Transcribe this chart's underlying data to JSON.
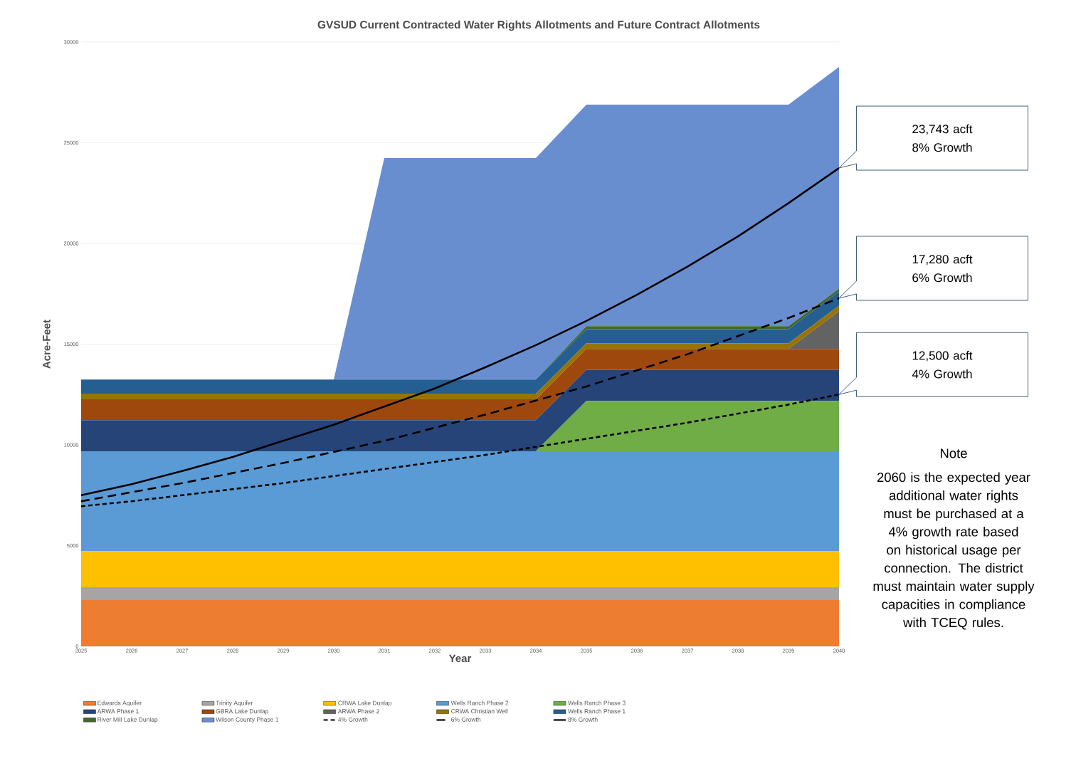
{
  "chart_data": {
    "type": "area",
    "title": "GVSUD Current Contracted Water Rights Allotments and Future Contract Allotments",
    "xlabel": "Year",
    "ylabel": "Acre-Feet",
    "stacked": true,
    "grid": "y",
    "legend": "bottom",
    "x": [
      2025,
      2026,
      2027,
      2028,
      2029,
      2030,
      2031,
      2032,
      2033,
      2034,
      2035,
      2036,
      2037,
      2038,
      2039,
      2040
    ],
    "xlim": [
      2025,
      2040
    ],
    "xticks": [
      2025,
      2026,
      2027,
      2028,
      2029,
      2030,
      2031,
      2032,
      2033,
      2034,
      2035,
      2036,
      2037,
      2038,
      2039,
      2040
    ],
    "ylim": [
      0,
      30000
    ],
    "yticks": [
      0,
      5000,
      10000,
      15000,
      20000,
      25000,
      30000
    ],
    "series": [
      {
        "name": "Edwards Aquifer",
        "color": "#ed7d31",
        "values": [
          2300,
          2300,
          2300,
          2300,
          2300,
          2300,
          2300,
          2300,
          2300,
          2300,
          2300,
          2300,
          2300,
          2300,
          2300,
          2300
        ]
      },
      {
        "name": "Trinity Aquifer",
        "color": "#a5a5a5",
        "values": [
          630,
          630,
          630,
          630,
          630,
          630,
          630,
          630,
          630,
          630,
          630,
          630,
          630,
          630,
          630,
          630
        ]
      },
      {
        "name": "CRWA Lake Dunlap",
        "color": "#ffc000",
        "values": [
          1800,
          1800,
          1800,
          1800,
          1800,
          1800,
          1800,
          1800,
          1800,
          1800,
          1800,
          1800,
          1800,
          1800,
          1800,
          1800
        ]
      },
      {
        "name": "Wells Ranch Phase 2",
        "color": "#5b9bd5",
        "values": [
          4950,
          4950,
          4950,
          4950,
          4950,
          4950,
          4950,
          4950,
          4950,
          4950,
          4950,
          4950,
          4950,
          4950,
          4950,
          4950
        ]
      },
      {
        "name": "Wells Ranch Phase 3",
        "color": "#70ad47",
        "values": [
          0,
          0,
          0,
          0,
          0,
          0,
          0,
          0,
          0,
          0,
          2500,
          2500,
          2500,
          2500,
          2500,
          2500
        ]
      },
      {
        "name": "ARWA Phase 1",
        "color": "#264478",
        "values": [
          1550,
          1550,
          1550,
          1550,
          1550,
          1550,
          1550,
          1550,
          1550,
          1550,
          1550,
          1550,
          1550,
          1550,
          1550,
          1550
        ]
      },
      {
        "name": "GBRA Lake Dunlap",
        "color": "#9e480e",
        "values": [
          1030,
          1030,
          1030,
          1030,
          1030,
          1030,
          1030,
          1030,
          1030,
          1030,
          1030,
          1030,
          1030,
          1030,
          1030,
          1030
        ]
      },
      {
        "name": "ARWA Phase 2",
        "color": "#636363",
        "values": [
          0,
          0,
          0,
          0,
          0,
          0,
          0,
          0,
          0,
          0,
          0,
          0,
          0,
          0,
          0,
          1870
        ]
      },
      {
        "name": "CRWA Christian Well",
        "color": "#997300",
        "values": [
          280,
          280,
          280,
          280,
          280,
          280,
          280,
          280,
          280,
          280,
          280,
          280,
          280,
          280,
          280,
          280
        ]
      },
      {
        "name": "Wells Ranch Phase 1",
        "color": "#255e91",
        "values": [
          700,
          700,
          700,
          700,
          700,
          700,
          700,
          700,
          700,
          700,
          700,
          700,
          700,
          700,
          700,
          700
        ]
      },
      {
        "name": "River Mill Lake Dunlap",
        "color": "#43682b",
        "values": [
          0,
          0,
          0,
          0,
          0,
          0,
          0,
          0,
          0,
          0,
          150,
          150,
          150,
          150,
          150,
          150
        ]
      },
      {
        "name": "Wilson County Phase 1",
        "color": "#698ed0",
        "values": [
          0,
          0,
          0,
          0,
          0,
          0,
          11000,
          11000,
          11000,
          11000,
          11000,
          11000,
          11000,
          11000,
          11000,
          11000
        ]
      },
      {
        "name": "4% Growth",
        "type": "line",
        "line_style": "dotted",
        "color": "#000000",
        "values": [
          6950,
          7200,
          7500,
          7800,
          8100,
          8450,
          8800,
          9150,
          9500,
          9900,
          10300,
          10700,
          11100,
          11550,
          12000,
          12500
        ]
      },
      {
        "name": "6% Growth",
        "type": "line",
        "line_style": "dashed",
        "color": "#000000",
        "values": [
          7200,
          7650,
          8100,
          8600,
          9100,
          9650,
          10200,
          10850,
          11500,
          12200,
          12900,
          13700,
          14500,
          15400,
          16300,
          17280
        ]
      },
      {
        "name": "8% Growth",
        "type": "line",
        "line_style": "solid",
        "color": "#000000",
        "values": [
          7500,
          8050,
          8700,
          9400,
          10200,
          11000,
          11900,
          12800,
          13850,
          14950,
          16150,
          17450,
          18850,
          20350,
          22000,
          23743
        ]
      }
    ],
    "annotations": [
      "23,743 acft 8% Growth",
      "17,280 acft 6% Growth",
      "12,500 acft 4% Growth",
      "Note",
      "2060 is the expected year additional water rights must be purchased at a 4% growth rate based on historical usage per connection. The district must maintain water supply capacities in compliance with TCEQ rules."
    ]
  }
}
